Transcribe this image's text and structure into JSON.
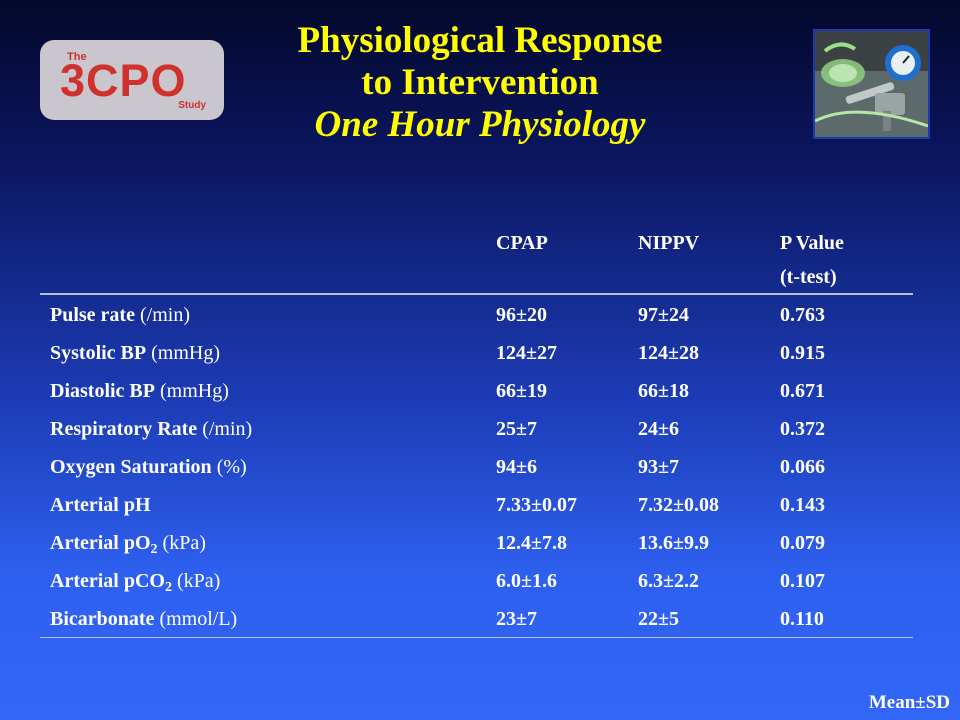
{
  "logo": {
    "the": "The",
    "main": "3CPO",
    "study": "Study"
  },
  "title": {
    "line1": "Physiological Response",
    "line2": "to Intervention",
    "subtitle": "One Hour Physiology"
  },
  "photo": {
    "icon": "medical-equipment-photo"
  },
  "table": {
    "headers": {
      "cpap": "CPAP",
      "nippv": "NIPPV",
      "pvalue": "P Value",
      "pvalue_sub": "(t-test)"
    },
    "rows": [
      {
        "label": "Pulse rate",
        "unit": "(/min)",
        "cpap": "96±20",
        "nippv": "97±24",
        "p": "0.763"
      },
      {
        "label": "Systolic BP",
        "unit": "(mmHg)",
        "cpap": "124±27",
        "nippv": "124±28",
        "p": "0.915"
      },
      {
        "label": "Diastolic BP",
        "unit": "(mmHg)",
        "cpap": "66±19",
        "nippv": "66±18",
        "p": "0.671"
      },
      {
        "label": "Respiratory Rate",
        "unit": "(/min)",
        "cpap": "25±7",
        "nippv": "24±6",
        "p": "0.372"
      },
      {
        "label": "Oxygen Saturation",
        "unit": "(%)",
        "cpap": "94±6",
        "nippv": "93±7",
        "p": "0.066"
      },
      {
        "label": "Arterial pH",
        "unit": "",
        "cpap": "7.33±0.07",
        "nippv": "7.32±0.08",
        "p": "0.143"
      },
      {
        "label": "Arterial pO",
        "sub": "2",
        "unit": "(kPa)",
        "cpap": "12.4±7.8",
        "nippv": "13.6±9.9",
        "p": "0.079"
      },
      {
        "label": "Arterial pCO",
        "sub": "2",
        "unit": "(kPa)",
        "cpap": "6.0±1.6",
        "nippv": "6.3±2.2",
        "p": "0.107"
      },
      {
        "label": "Bicarbonate",
        "unit": "(mmol/L)",
        "cpap": "23±7",
        "nippv": "22±5",
        "p": "0.110"
      }
    ]
  },
  "footer": "Mean±SD",
  "colors": {
    "title": "#ffff00",
    "logo_text": "#d0312d",
    "logo_bg": "#c9c6cd"
  }
}
